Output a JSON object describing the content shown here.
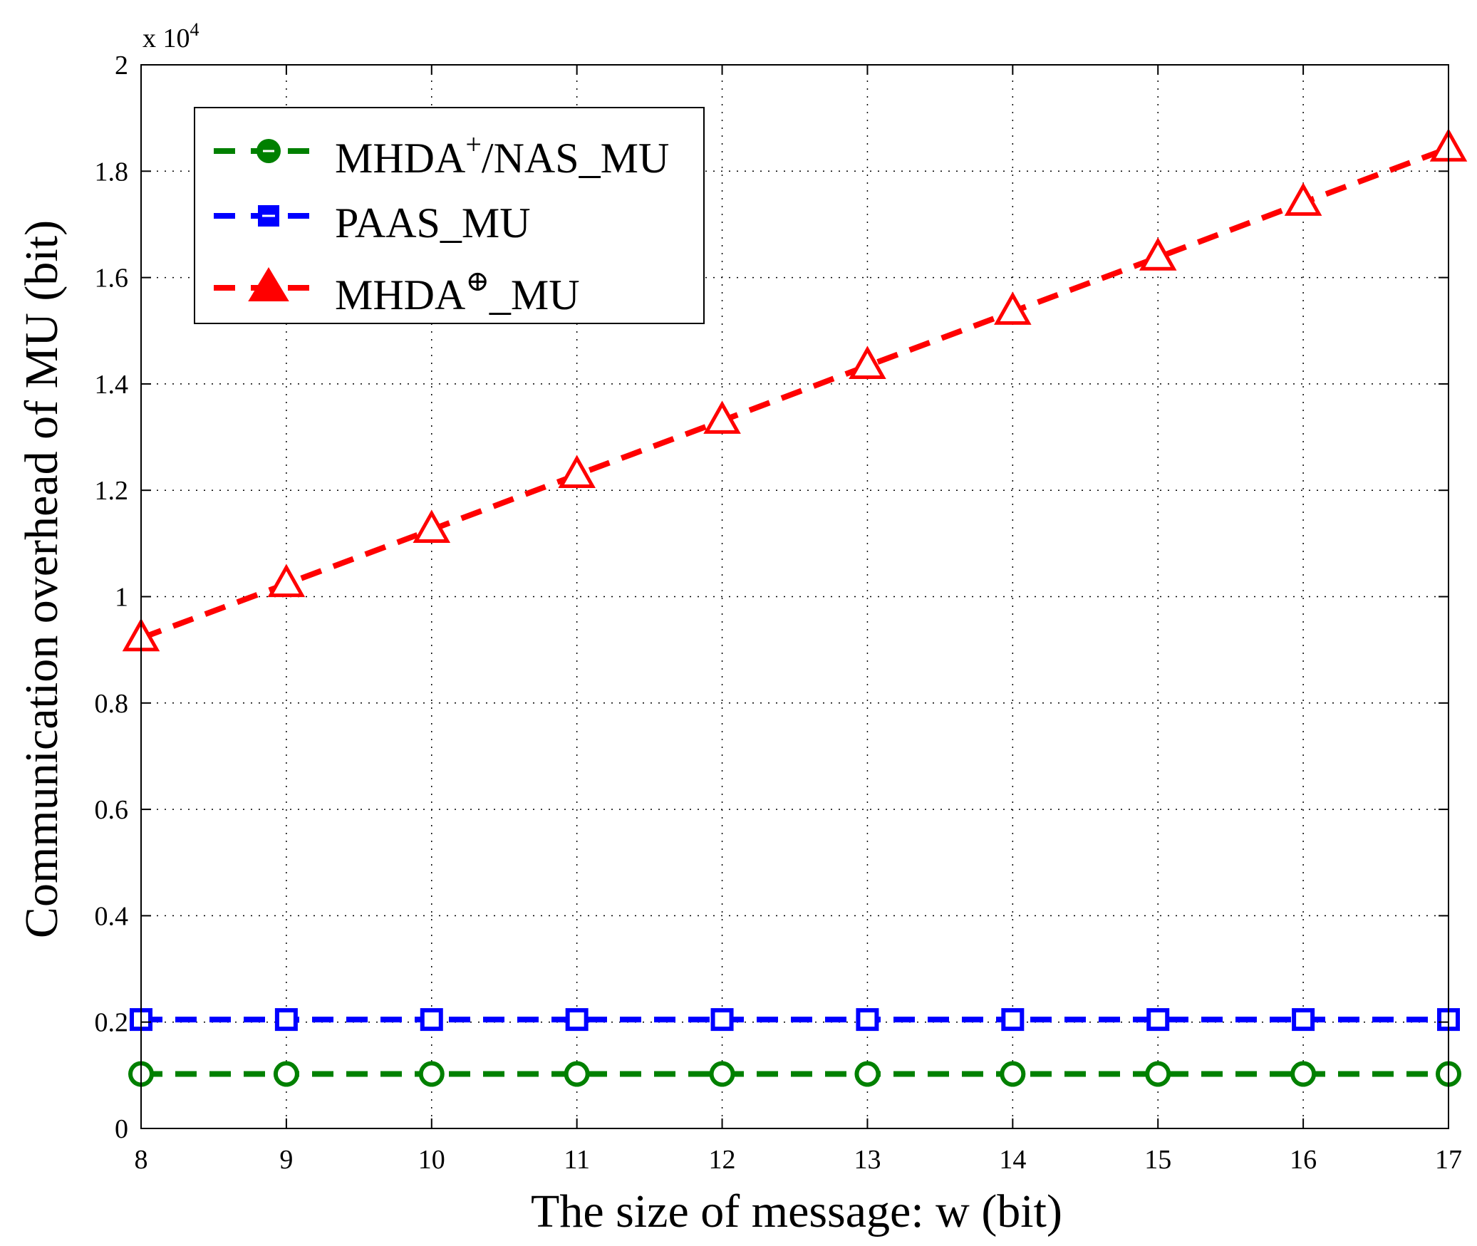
{
  "chart_data": {
    "type": "line",
    "title": "",
    "xlabel": "The size of message: w (bit)",
    "ylabel": "Communication overhead of MU (bit)",
    "x": [
      8,
      9,
      10,
      11,
      12,
      13,
      14,
      15,
      16,
      17
    ],
    "xticks": [
      "8",
      "9",
      "10",
      "11",
      "12",
      "13",
      "14",
      "15",
      "16",
      "17"
    ],
    "xlim": [
      8,
      17
    ],
    "yticks": [
      "0",
      "0.2",
      "0.4",
      "0.6",
      "0.8",
      "1",
      "1.2",
      "1.4",
      "1.6",
      "1.8",
      "2"
    ],
    "ylim": [
      0,
      2
    ],
    "y_multiplier": {
      "prefix": "x 10",
      "exponent": "4"
    },
    "grid": true,
    "legend_position": "top-left",
    "series": [
      {
        "name": "MHDA+/NAS_MU",
        "legend_base": "MHDA",
        "legend_sup": "+",
        "legend_rest": "/NAS_MU",
        "marker": "circle",
        "color": "#008000",
        "values": [
          0.1024,
          0.1024,
          0.1024,
          0.1024,
          0.1024,
          0.1024,
          0.1024,
          0.1024,
          0.1024,
          0.1024
        ]
      },
      {
        "name": "PAAS_MU",
        "legend_base": "PAAS_MU",
        "legend_sup": "",
        "legend_rest": "",
        "marker": "square",
        "color": "#0000ff",
        "values": [
          0.2048,
          0.2048,
          0.2048,
          0.2048,
          0.2048,
          0.2048,
          0.2048,
          0.2048,
          0.2048,
          0.2048
        ]
      },
      {
        "name": "MHDA⊕_MU",
        "legend_base": "MHDA",
        "legend_sup": "⊕",
        "legend_rest": "_MU",
        "marker": "triangle",
        "color": "#ff0000",
        "values": [
          0.922,
          1.024,
          1.126,
          1.229,
          1.331,
          1.434,
          1.536,
          1.638,
          1.741,
          1.843
        ]
      }
    ]
  }
}
